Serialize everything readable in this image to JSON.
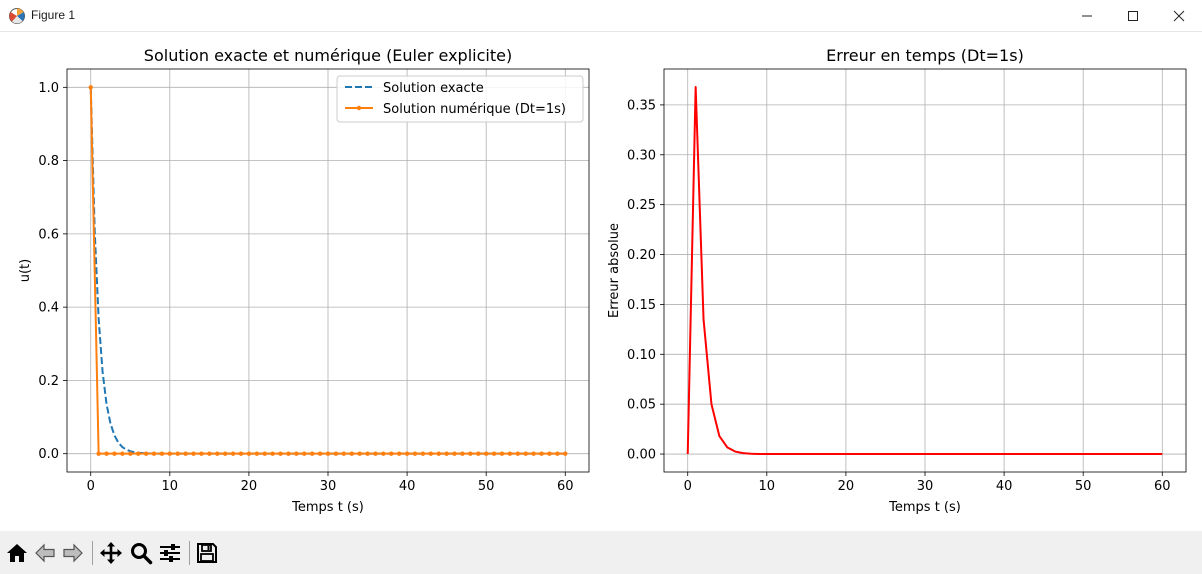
{
  "window": {
    "title": "Figure 1",
    "icon": "matplotlib-icon",
    "controls": [
      "minimize-icon",
      "maximize-icon",
      "close-icon"
    ]
  },
  "toolbar": {
    "buttons": [
      "home-icon",
      "back-icon",
      "forward-icon",
      "pan-icon",
      "zoom-icon",
      "configure-subplots-icon",
      "save-icon"
    ]
  },
  "chart_data": [
    {
      "type": "line",
      "title": "Solution exacte et numérique (Euler explicite)",
      "xlabel": "Temps t (s)",
      "ylabel": "u(t)",
      "xlim": [
        -3,
        63
      ],
      "ylim": [
        -0.05,
        1.05
      ],
      "xticks": [
        0,
        10,
        20,
        30,
        40,
        50,
        60
      ],
      "yticks": [
        0.0,
        0.2,
        0.4,
        0.6,
        0.8,
        1.0
      ],
      "xtick_labels": [
        "0",
        "10",
        "20",
        "30",
        "40",
        "50",
        "60"
      ],
      "ytick_labels": [
        "0.0",
        "0.2",
        "0.4",
        "0.6",
        "0.8",
        "1.0"
      ],
      "grid": true,
      "legend": "top-right",
      "series": [
        {
          "name": "Solution exacte",
          "color": "#1f77b4",
          "style": "dashed",
          "x": [
            0,
            0.5,
            1,
            1.5,
            2,
            2.5,
            3,
            3.5,
            4,
            4.5,
            5,
            5.5,
            6,
            7,
            8,
            10,
            60
          ],
          "y": [
            1.0,
            0.61,
            0.368,
            0.223,
            0.135,
            0.082,
            0.05,
            0.03,
            0.018,
            0.011,
            0.0067,
            0.004,
            0.0025,
            0.0009,
            0.0003,
            0.0,
            0.0
          ]
        },
        {
          "name": "Solution numérique (Dt=1s)",
          "color": "#ff7f0e",
          "style": "solid",
          "marker": "point",
          "x": [
            0,
            1,
            2,
            3,
            4,
            5,
            6,
            7,
            8,
            9,
            10,
            11,
            12,
            13,
            14,
            15,
            16,
            17,
            18,
            19,
            20,
            21,
            22,
            23,
            24,
            25,
            26,
            27,
            28,
            29,
            30,
            31,
            32,
            33,
            34,
            35,
            36,
            37,
            38,
            39,
            40,
            41,
            42,
            43,
            44,
            45,
            46,
            47,
            48,
            49,
            50,
            51,
            52,
            53,
            54,
            55,
            56,
            57,
            58,
            59,
            60
          ],
          "y": [
            1.0,
            0,
            0,
            0,
            0,
            0,
            0,
            0,
            0,
            0,
            0,
            0,
            0,
            0,
            0,
            0,
            0,
            0,
            0,
            0,
            0,
            0,
            0,
            0,
            0,
            0,
            0,
            0,
            0,
            0,
            0,
            0,
            0,
            0,
            0,
            0,
            0,
            0,
            0,
            0,
            0,
            0,
            0,
            0,
            0,
            0,
            0,
            0,
            0,
            0,
            0,
            0,
            0,
            0,
            0,
            0,
            0,
            0,
            0,
            0,
            0
          ]
        }
      ]
    },
    {
      "type": "line",
      "title": "Erreur en temps (Dt=1s)",
      "xlabel": "Temps t (s)",
      "ylabel": "Erreur absolue",
      "xlim": [
        -3,
        63
      ],
      "ylim": [
        -0.018,
        0.386
      ],
      "xticks": [
        0,
        10,
        20,
        30,
        40,
        50,
        60
      ],
      "yticks": [
        0.0,
        0.05,
        0.1,
        0.15,
        0.2,
        0.25,
        0.3,
        0.35
      ],
      "xtick_labels": [
        "0",
        "10",
        "20",
        "30",
        "40",
        "50",
        "60"
      ],
      "ytick_labels": [
        "0.00",
        "0.05",
        "0.10",
        "0.15",
        "0.20",
        "0.25",
        "0.30",
        "0.35"
      ],
      "grid": true,
      "series": [
        {
          "color": "#ff0000",
          "style": "solid",
          "x": [
            0,
            1,
            2,
            3,
            4,
            5,
            6,
            7,
            8,
            9,
            10,
            15,
            20,
            30,
            40,
            50,
            60
          ],
          "y": [
            0.0,
            0.368,
            0.135,
            0.05,
            0.018,
            0.0067,
            0.0025,
            0.0009,
            0.0003,
            0.0001,
            0.0,
            0.0,
            0.0,
            0.0,
            0.0,
            0.0,
            0.0
          ]
        }
      ]
    }
  ]
}
